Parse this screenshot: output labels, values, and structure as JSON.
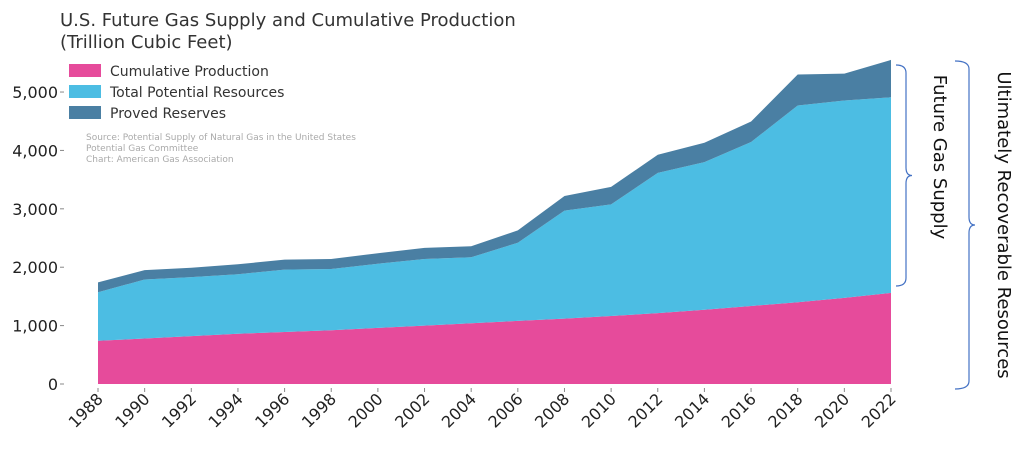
{
  "chart_data": {
    "type": "area",
    "stacked": true,
    "title": [
      "U.S. Future Gas Supply and Cumulative Production",
      "(Trillion Cubic Feet)"
    ],
    "x": [
      1988,
      1990,
      1992,
      1994,
      1996,
      1998,
      2000,
      2002,
      2004,
      2006,
      2008,
      2010,
      2012,
      2014,
      2016,
      2018,
      2020,
      2022
    ],
    "x_tick_labels": [
      "1988",
      "1990",
      "1992",
      "1994",
      "1996",
      "1998",
      "2000",
      "2002",
      "2004",
      "2006",
      "2008",
      "2010",
      "2012",
      "2014",
      "2016",
      "2018",
      "2020",
      "2022"
    ],
    "ylim": [
      0,
      5600
    ],
    "y_ticks": [
      0,
      1000,
      2000,
      3000,
      4000,
      5000
    ],
    "y_tick_labels": [
      "0",
      "1,000",
      "2,000",
      "3,000",
      "4,000",
      "5,000"
    ],
    "series": [
      {
        "name": "Cumulative Production",
        "color": "#E64B9B",
        "values": [
          740,
          780,
          820,
          860,
          890,
          920,
          960,
          1000,
          1040,
          1080,
          1120,
          1165,
          1215,
          1270,
          1335,
          1400,
          1475,
          1560
        ]
      },
      {
        "name": "Total Potential Resources",
        "color": "#4CBDE3",
        "values": [
          830,
          1010,
          1010,
          1020,
          1070,
          1050,
          1100,
          1140,
          1130,
          1340,
          1850,
          1910,
          2400,
          2530,
          2810,
          3370,
          3380,
          3350
        ]
      },
      {
        "name": "Proved Reserves",
        "color": "#4A7FA3",
        "values": [
          170,
          160,
          160,
          170,
          170,
          170,
          180,
          190,
          190,
          210,
          250,
          300,
          310,
          330,
          350,
          530,
          460,
          640
        ]
      }
    ],
    "legend": [
      "Cumulative Production",
      "Total Potential Resources",
      "Proved Reserves"
    ],
    "legend_position": "top-left",
    "source": [
      "Source: Potential Supply of Natural Gas in the United States",
      "Potential Gas Committee",
      "Chart: American Gas Association"
    ],
    "annotations": {
      "future_supply": "Future Gas Supply",
      "ultimately_recoverable": "Ultimately Recoverable Resources"
    },
    "brace_color": "#4472C4"
  }
}
